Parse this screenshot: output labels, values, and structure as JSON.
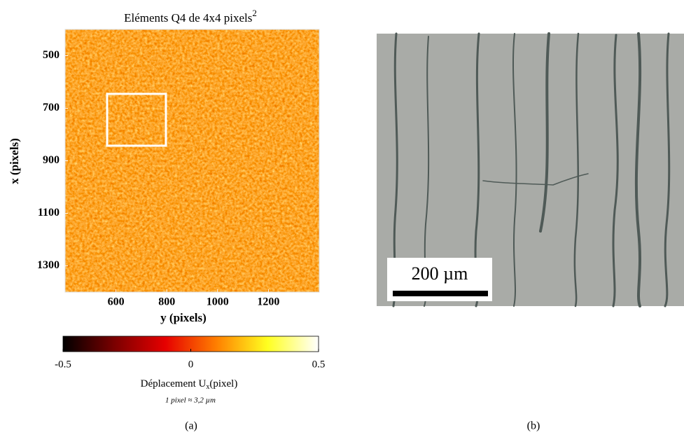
{
  "chart_data": {
    "type": "heatmap",
    "title": "Eléments Q4 de 4x4 pixels",
    "title_superscript": "2",
    "xlabel": "y (pixels)",
    "ylabel": "x (pixels)",
    "xlim": [
      400,
      1400
    ],
    "ylim": [
      400,
      1400
    ],
    "y_reversed": true,
    "xticks": [
      600,
      800,
      1000,
      1200
    ],
    "yticks": [
      500,
      700,
      900,
      1100,
      1300
    ],
    "colormap": [
      "#000000",
      "#7a0000",
      "#e60000",
      "#ff7f00",
      "#ffff20",
      "#ffffff"
    ],
    "clim": [
      -0.5,
      0.5
    ],
    "cticks": [
      -0.5,
      0,
      0.5
    ],
    "colorbar_label": "Déplacement U",
    "colorbar_label_subscript": "x",
    "colorbar_label_unit": "(pixel)",
    "note": "1 pixel ≈ 3,2 µm"
  },
  "photo": {
    "scale_bar": "200 µm"
  },
  "panel_labels": [
    "(a)",
    "(b)"
  ]
}
